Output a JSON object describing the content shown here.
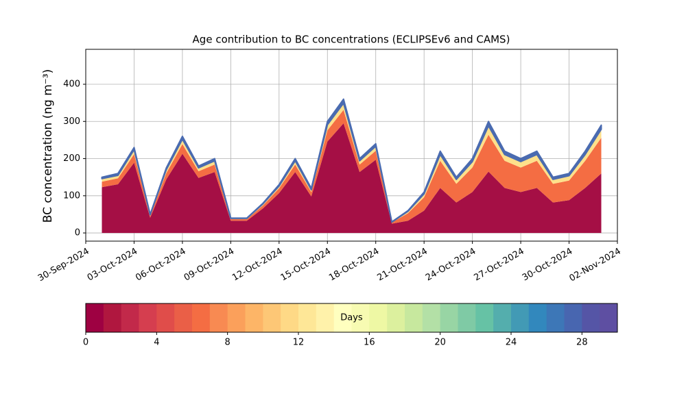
{
  "chart_data": {
    "type": "stacked_area",
    "title": "Age contribution to BC concentrations (ECLIPSEv6 and CAMS)",
    "y_label": "BC concentration (ng m⁻³)",
    "x": [
      "2024-10-01",
      "2024-10-02",
      "2024-10-03",
      "2024-10-04",
      "2024-10-05",
      "2024-10-06",
      "2024-10-07",
      "2024-10-08",
      "2024-10-09",
      "2024-10-10",
      "2024-10-11",
      "2024-10-12",
      "2024-10-13",
      "2024-10-14",
      "2024-10-15",
      "2024-10-16",
      "2024-10-17",
      "2024-10-18",
      "2024-10-19",
      "2024-10-20",
      "2024-10-21",
      "2024-10-22",
      "2024-10-23",
      "2024-10-24",
      "2024-10-25",
      "2024-10-26",
      "2024-10-27",
      "2024-10-28",
      "2024-10-29",
      "2024-10-30",
      "2024-10-31",
      "2024-11-01"
    ],
    "series": [
      {
        "color": "#a50f45",
        "values": [
          123,
          131,
          189,
          41,
          144,
          213,
          148,
          164,
          33,
          33,
          66,
          107,
          164,
          98,
          246,
          295,
          164,
          197,
          25,
          33,
          60,
          121,
          82,
          110,
          165,
          121,
          110,
          121,
          82,
          88,
          121,
          160
        ]
      },
      {
        "color": "#f46d43",
        "values": [
          15,
          16,
          23,
          5,
          17,
          26,
          18,
          20,
          4,
          4,
          8,
          13,
          20,
          12,
          30,
          36,
          20,
          24,
          3,
          20,
          36,
          73,
          50,
          66,
          99,
          73,
          66,
          73,
          50,
          53,
          73,
          96
        ]
      },
      {
        "color": "#fee08b",
        "values": [
          8,
          8,
          12,
          3,
          9,
          13,
          9,
          10,
          2,
          2,
          4,
          6,
          10,
          6,
          15,
          18,
          10,
          12,
          1,
          5,
          9,
          17,
          12,
          16,
          24,
          17,
          16,
          17,
          12,
          13,
          17,
          23
        ]
      },
      {
        "color": "#4a6bb0",
        "values": [
          4,
          5,
          6,
          1,
          5,
          8,
          5,
          6,
          1,
          1,
          2,
          4,
          6,
          4,
          9,
          11,
          6,
          7,
          1,
          2,
          5,
          9,
          6,
          8,
          12,
          9,
          8,
          9,
          6,
          6,
          9,
          11
        ]
      }
    ],
    "xlim": [
      "2024-09-30",
      "2024-11-02"
    ],
    "xticks": [
      {
        "value": "2024-09-30",
        "label": "30-Sep-2024"
      },
      {
        "value": "2024-10-03",
        "label": "03-Oct-2024"
      },
      {
        "value": "2024-10-06",
        "label": "06-Oct-2024"
      },
      {
        "value": "2024-10-09",
        "label": "09-Oct-2024"
      },
      {
        "value": "2024-10-12",
        "label": "12-Oct-2024"
      },
      {
        "value": "2024-10-15",
        "label": "15-Oct-2024"
      },
      {
        "value": "2024-10-18",
        "label": "18-Oct-2024"
      },
      {
        "value": "2024-10-21",
        "label": "21-Oct-2024"
      },
      {
        "value": "2024-10-24",
        "label": "24-Oct-2024"
      },
      {
        "value": "2024-10-27",
        "label": "27-Oct-2024"
      },
      {
        "value": "2024-10-30",
        "label": "30-Oct-2024"
      },
      {
        "value": "2024-11-02",
        "label": "02-Nov-2024"
      }
    ],
    "ylim": [
      -22,
      494
    ],
    "yticks": [
      0,
      100,
      200,
      300,
      400
    ],
    "grid": true,
    "colorbar": {
      "label": "Days",
      "bounds": [
        0,
        30
      ],
      "ticks": [
        0,
        4,
        8,
        12,
        16,
        20,
        24,
        28
      ],
      "colors": [
        "#9e0142",
        "#b0173f",
        "#c2294a",
        "#d53e4f",
        "#e04d4a",
        "#ea5f47",
        "#f46d43",
        "#f88a52",
        "#fba05b",
        "#fdb567",
        "#fdc776",
        "#fed986",
        "#fee797",
        "#fff2aa",
        "#ffffbf",
        "#f7fbb2",
        "#eef8a4",
        "#dcf09e",
        "#c7e89e",
        "#b3e0a6",
        "#98d5a4",
        "#7fcaa5",
        "#66c2a5",
        "#54aead",
        "#429ab5",
        "#3288bd",
        "#3d77b7",
        "#4866b0",
        "#5555a6",
        "#5e4fa2"
      ]
    }
  }
}
